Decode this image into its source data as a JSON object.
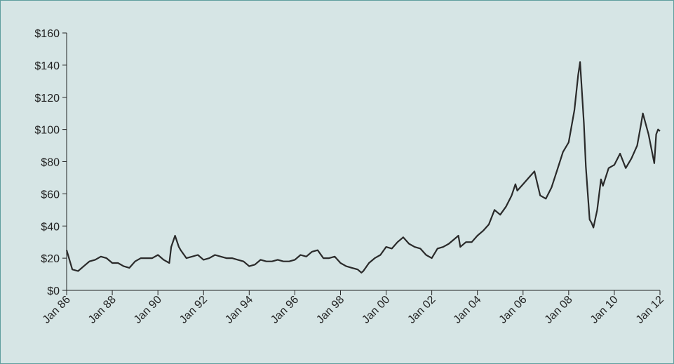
{
  "chart_data": {
    "type": "line",
    "x": [
      "1986-01",
      "1986-04",
      "1986-07",
      "1986-10",
      "1987-01",
      "1987-04",
      "1987-07",
      "1987-10",
      "1988-01",
      "1988-04",
      "1988-07",
      "1988-10",
      "1989-01",
      "1989-04",
      "1989-07",
      "1989-10",
      "1990-01",
      "1990-04",
      "1990-07",
      "1990-08",
      "1990-10",
      "1990-12",
      "1991-01",
      "1991-04",
      "1991-07",
      "1991-10",
      "1992-01",
      "1992-04",
      "1992-07",
      "1992-10",
      "1993-01",
      "1993-04",
      "1993-07",
      "1993-10",
      "1994-01",
      "1994-04",
      "1994-07",
      "1994-10",
      "1995-01",
      "1995-04",
      "1995-07",
      "1995-10",
      "1996-01",
      "1996-04",
      "1996-07",
      "1996-10",
      "1997-01",
      "1997-04",
      "1997-07",
      "1997-10",
      "1998-01",
      "1998-04",
      "1998-07",
      "1998-10",
      "1998-12",
      "1999-01",
      "1999-04",
      "1999-07",
      "1999-10",
      "2000-01",
      "2000-04",
      "2000-07",
      "2000-10",
      "2001-01",
      "2001-04",
      "2001-07",
      "2001-10",
      "2002-01",
      "2002-04",
      "2002-07",
      "2002-10",
      "2003-01",
      "2003-03",
      "2003-04",
      "2003-07",
      "2003-10",
      "2004-01",
      "2004-04",
      "2004-07",
      "2004-10",
      "2005-01",
      "2005-04",
      "2005-07",
      "2005-09",
      "2005-10",
      "2006-01",
      "2006-04",
      "2006-07",
      "2006-10",
      "2007-01",
      "2007-04",
      "2007-07",
      "2007-10",
      "2008-01",
      "2008-04",
      "2008-06",
      "2008-07",
      "2008-09",
      "2008-10",
      "2008-12",
      "2009-01",
      "2009-02",
      "2009-04",
      "2009-06",
      "2009-07",
      "2009-10",
      "2010-01",
      "2010-04",
      "2010-07",
      "2010-10",
      "2011-01",
      "2011-03",
      "2011-04",
      "2011-07",
      "2011-10",
      "2011-11",
      "2011-12",
      "2012-01"
    ],
    "series": [
      {
        "color": "#2a2a2a",
        "values": [
          25,
          13,
          12,
          15,
          18,
          19,
          21,
          20,
          17,
          17,
          15,
          14,
          18,
          20,
          20,
          20,
          22,
          19,
          17,
          27,
          34,
          27,
          25,
          20,
          21,
          22,
          19,
          20,
          22,
          21,
          20,
          20,
          19,
          18,
          15,
          16,
          19,
          18,
          18,
          19,
          18,
          18,
          19,
          22,
          21,
          24,
          25,
          20,
          20,
          21,
          17,
          15,
          14,
          13,
          11,
          12,
          17,
          20,
          22,
          27,
          26,
          30,
          33,
          29,
          27,
          26,
          22,
          20,
          26,
          27,
          29,
          32,
          34,
          27,
          30,
          30,
          34,
          37,
          41,
          50,
          47,
          52,
          59,
          66,
          62,
          66,
          70,
          74,
          59,
          57,
          64,
          75,
          86,
          92,
          112,
          134,
          142,
          104,
          77,
          44,
          42,
          39,
          50,
          69,
          65,
          76,
          78,
          85,
          76,
          82,
          90,
          103,
          110,
          97,
          79,
          97,
          100,
          99
        ]
      }
    ],
    "xlim": [
      "1986-01",
      "2012-01"
    ],
    "xticks": [
      {
        "value": "1986-01",
        "label": "Jan 86"
      },
      {
        "value": "1988-01",
        "label": "Jan 88"
      },
      {
        "value": "1990-01",
        "label": "Jan 90"
      },
      {
        "value": "1992-01",
        "label": "Jan 92"
      },
      {
        "value": "1994-01",
        "label": "Jan 94"
      },
      {
        "value": "1996-01",
        "label": "Jan 96"
      },
      {
        "value": "1998-01",
        "label": "Jan 98"
      },
      {
        "value": "2000-01",
        "label": "Jan 00"
      },
      {
        "value": "2002-01",
        "label": "Jan 02"
      },
      {
        "value": "2004-01",
        "label": "Jan 04"
      },
      {
        "value": "2006-01",
        "label": "Jan 06"
      },
      {
        "value": "2008-01",
        "label": "Jan 08"
      },
      {
        "value": "2010-01",
        "label": "Jan 10"
      },
      {
        "value": "2012-01",
        "label": "Jan 12"
      }
    ],
    "ylim": [
      0,
      160
    ],
    "yticks": [
      {
        "value": 0,
        "label": "$0"
      },
      {
        "value": 20,
        "label": "$20"
      },
      {
        "value": 40,
        "label": "$40"
      },
      {
        "value": 60,
        "label": "$60"
      },
      {
        "value": 80,
        "label": "$80"
      },
      {
        "value": 100,
        "label": "$100"
      },
      {
        "value": 120,
        "label": "$120"
      },
      {
        "value": 140,
        "label": "$140"
      },
      {
        "value": 160,
        "label": "$160"
      }
    ],
    "grid": false
  }
}
